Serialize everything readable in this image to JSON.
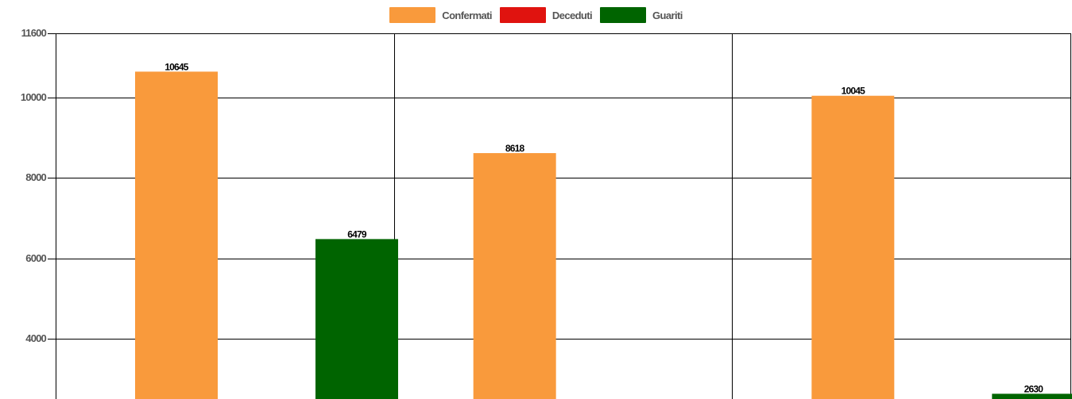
{
  "chart_data": {
    "type": "bar",
    "categories": [
      "",
      "",
      ""
    ],
    "series": [
      {
        "name": "Confermati",
        "color": "#f99a3c",
        "values": [
          10645,
          8618,
          10045
        ]
      },
      {
        "name": "Deceduti",
        "color": "#e0130f",
        "values": [
          null,
          null,
          null
        ]
      },
      {
        "name": "Guariti",
        "color": "#006400",
        "values": [
          6479,
          null,
          2630
        ]
      }
    ],
    "ylim": [
      2000,
      11600
    ],
    "yticks": [
      11600,
      10000,
      8000,
      6000,
      4000
    ],
    "tick_labels": [
      "11600",
      "10000",
      "8000",
      "6000",
      "4000"
    ],
    "data_labels": [
      [
        "10645",
        "8618",
        "10045"
      ],
      [
        "",
        "",
        ""
      ],
      [
        "6479",
        "",
        "2630"
      ]
    ],
    "legend": "top-center",
    "grid": true
  }
}
